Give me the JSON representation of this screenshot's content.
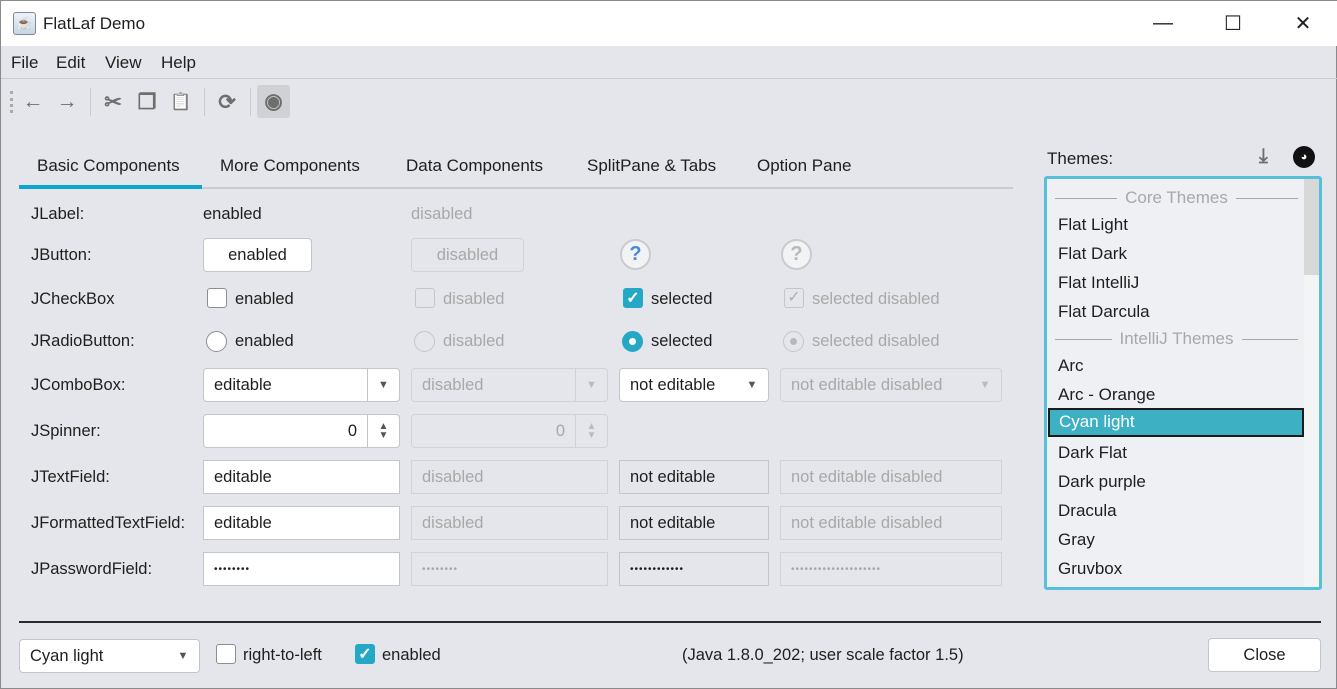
{
  "window": {
    "title": "FlatLaf Demo",
    "minimize": "—",
    "maximize": "☐",
    "close": "✕"
  },
  "menu": [
    "File",
    "Edit",
    "View",
    "Help"
  ],
  "toolbar": {
    "icons": [
      "back-arrow",
      "forward-arrow",
      "cut",
      "copy",
      "paste",
      "refresh",
      "show-toggle"
    ],
    "glyphs": [
      "←",
      "→",
      "✂",
      "❐",
      "📋",
      "⟳",
      "◉"
    ]
  },
  "tabs": [
    "Basic Components",
    "More Components",
    "Data Components",
    "SplitPane & Tabs",
    "Option Pane"
  ],
  "selected_tab": "Basic Components",
  "rows": {
    "labels": [
      "JLabel:",
      "JButton:",
      "JCheckBox",
      "JRadioButton:",
      "JComboBox:",
      "JSpinner:",
      "JTextField:",
      "JFormattedTextField:",
      "JPasswordField:"
    ],
    "jlabel": [
      "enabled",
      "disabled"
    ],
    "jbutton": [
      "enabled",
      "disabled",
      "?",
      "?"
    ],
    "jcheckbox": [
      "enabled",
      "disabled",
      "selected",
      "selected disabled"
    ],
    "jradio": [
      "enabled",
      "disabled",
      "selected",
      "selected disabled"
    ],
    "jcombo": [
      "editable",
      "disabled",
      "not editable",
      "not editable disabled"
    ],
    "jspinner": [
      "0",
      "0"
    ],
    "jtextfield": [
      "editable",
      "disabled",
      "not editable",
      "not editable disabled"
    ],
    "jformatted": [
      "editable",
      "disabled",
      "not editable",
      "not editable disabled"
    ],
    "jpassword": [
      "••••••••",
      "••••••••",
      "••••••••••••",
      "••••••••••••••••••••"
    ]
  },
  "themes": {
    "label": "Themes:",
    "core_header": "Core Themes",
    "core": [
      "Flat Light",
      "Flat Dark",
      "Flat IntelliJ",
      "Flat Darcula"
    ],
    "intellij_header": "IntelliJ Themes",
    "intellij": [
      "Arc",
      "Arc - Orange",
      "Cyan light",
      "Dark Flat",
      "Dark purple",
      "Dracula",
      "Gray",
      "Gruvbox"
    ],
    "selected": "Cyan light"
  },
  "bottom": {
    "theme_combo": "Cyan light",
    "rtl_label": "right-to-left",
    "rtl_checked": false,
    "enabled_label": "enabled",
    "enabled_checked": true,
    "info": "(Java 1.8.0_202;  user scale factor 1.5)",
    "close": "Close"
  },
  "colors": {
    "accent": "#0ba6cf",
    "selection": "#3eb0c4",
    "background": "#e4e6eb"
  }
}
